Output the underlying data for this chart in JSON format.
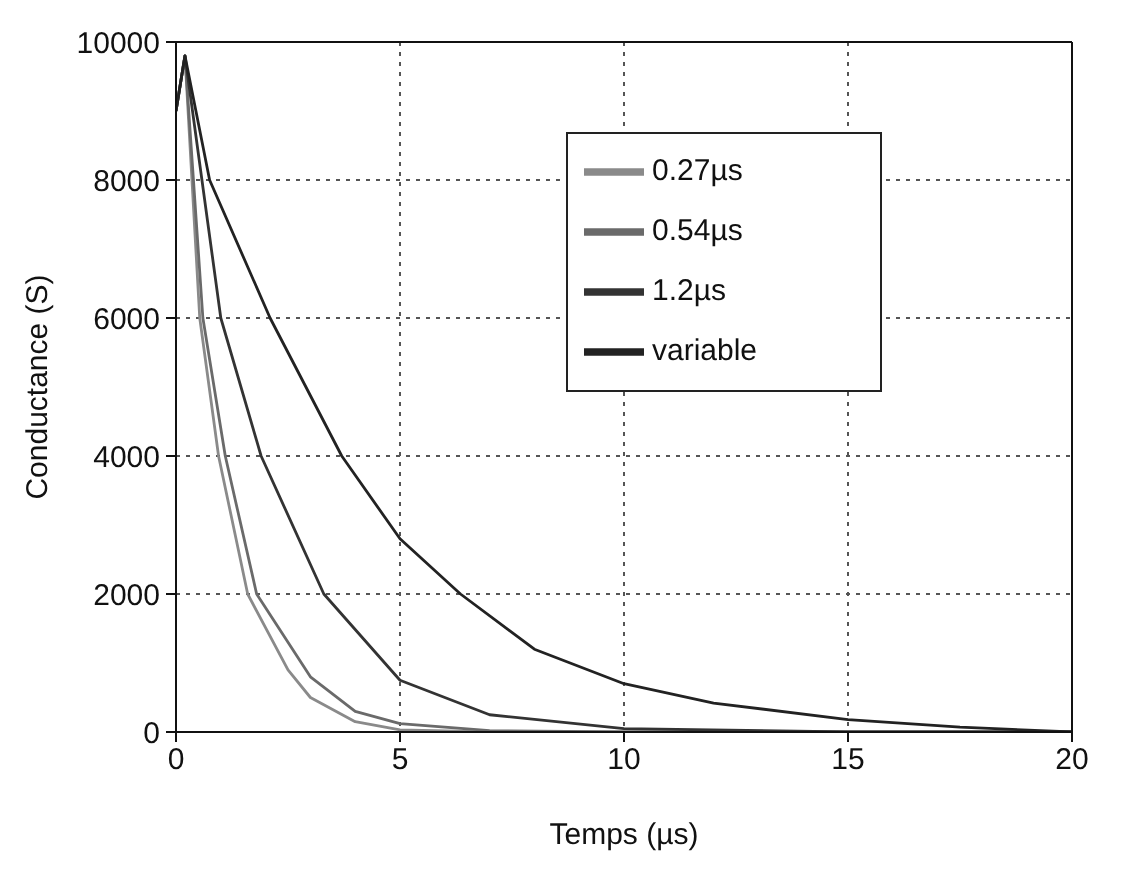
{
  "chart_data": {
    "type": "line",
    "xlabel": "Temps (µs)",
    "ylabel": "Conductance (S)",
    "xlim": [
      0,
      20
    ],
    "xticks": [
      0,
      5,
      10,
      15,
      20
    ],
    "ylim": [
      0,
      10000
    ],
    "yticks": [
      0,
      2000,
      4000,
      6000,
      8000,
      10000
    ],
    "grid": true,
    "legend": "top right",
    "marker": "none",
    "line_style": "solid",
    "series": [
      {
        "name": "0.27µs",
        "color": "#8a8a8a",
        "x": [
          0,
          0.2,
          0.53,
          0.95,
          1.6,
          2.5,
          3,
          4,
          5,
          7,
          10,
          15,
          20
        ],
        "values": [
          9000,
          9800,
          6000,
          4000,
          2000,
          900,
          500,
          150,
          30,
          0,
          0,
          0,
          0
        ]
      },
      {
        "name": "0.54µs",
        "color": "#6a6a6a",
        "x": [
          0,
          0.2,
          0.6,
          1.1,
          1.8,
          3,
          4,
          5,
          7,
          10,
          15,
          20
        ],
        "values": [
          9000,
          9800,
          6000,
          4000,
          2000,
          800,
          300,
          120,
          20,
          0,
          0,
          0
        ]
      },
      {
        "name": "1.2µs",
        "color": "#333333",
        "x": [
          0,
          0.2,
          1,
          1.9,
          3.3,
          5,
          7,
          10,
          15,
          20
        ],
        "values": [
          9000,
          9800,
          6000,
          4000,
          2000,
          750,
          250,
          50,
          0,
          0
        ]
      },
      {
        "name": "variable",
        "color": "#222222",
        "x": [
          0,
          0.2,
          0.75,
          2.1,
          3.7,
          5,
          6.35,
          8,
          10,
          12,
          15,
          17.5,
          20
        ],
        "values": [
          9000,
          9800,
          8000,
          6000,
          4000,
          2800,
          2000,
          1200,
          700,
          420,
          180,
          70,
          0
        ]
      }
    ]
  }
}
